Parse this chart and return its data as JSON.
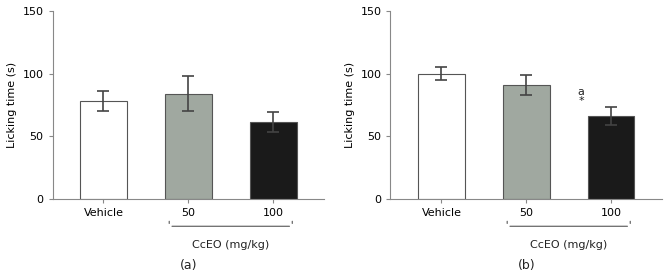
{
  "panel_a": {
    "categories": [
      "Vehicle",
      "50",
      "100"
    ],
    "values": [
      78,
      84,
      61
    ],
    "errors": [
      8,
      14,
      8
    ],
    "bar_colors": [
      "#ffffff",
      "#a0a8a0",
      "#1a1a1a"
    ],
    "bar_edgecolor": "#555555",
    "ylabel": "Licking time (s)",
    "xlabel_main": "CcEO (mg/kg)",
    "ylim": [
      0,
      150
    ],
    "yticks": [
      0,
      50,
      100,
      150
    ],
    "bracket_cats": [
      "50",
      "100"
    ],
    "label": "(a)"
  },
  "panel_b": {
    "categories": [
      "Vehicle",
      "50",
      "100"
    ],
    "values": [
      100,
      91,
      66
    ],
    "errors": [
      5,
      8,
      7
    ],
    "bar_colors": [
      "#ffffff",
      "#a0a8a0",
      "#1a1a1a"
    ],
    "bar_edgecolor": "#555555",
    "ylabel": "Licking time (s)",
    "xlabel_main": "CcEO (mg/kg)",
    "ylim": [
      0,
      150
    ],
    "yticks": [
      0,
      50,
      100,
      150
    ],
    "bracket_cats": [
      "50",
      "100"
    ],
    "annotation_100": "a\n*",
    "label": "(b)"
  },
  "bar_width": 0.55,
  "capsize": 4,
  "elinewidth": 1.2,
  "ecapthick": 1.2,
  "spine_color": "#888888",
  "tick_color": "#555555",
  "font_size": 8,
  "label_font_size": 8
}
